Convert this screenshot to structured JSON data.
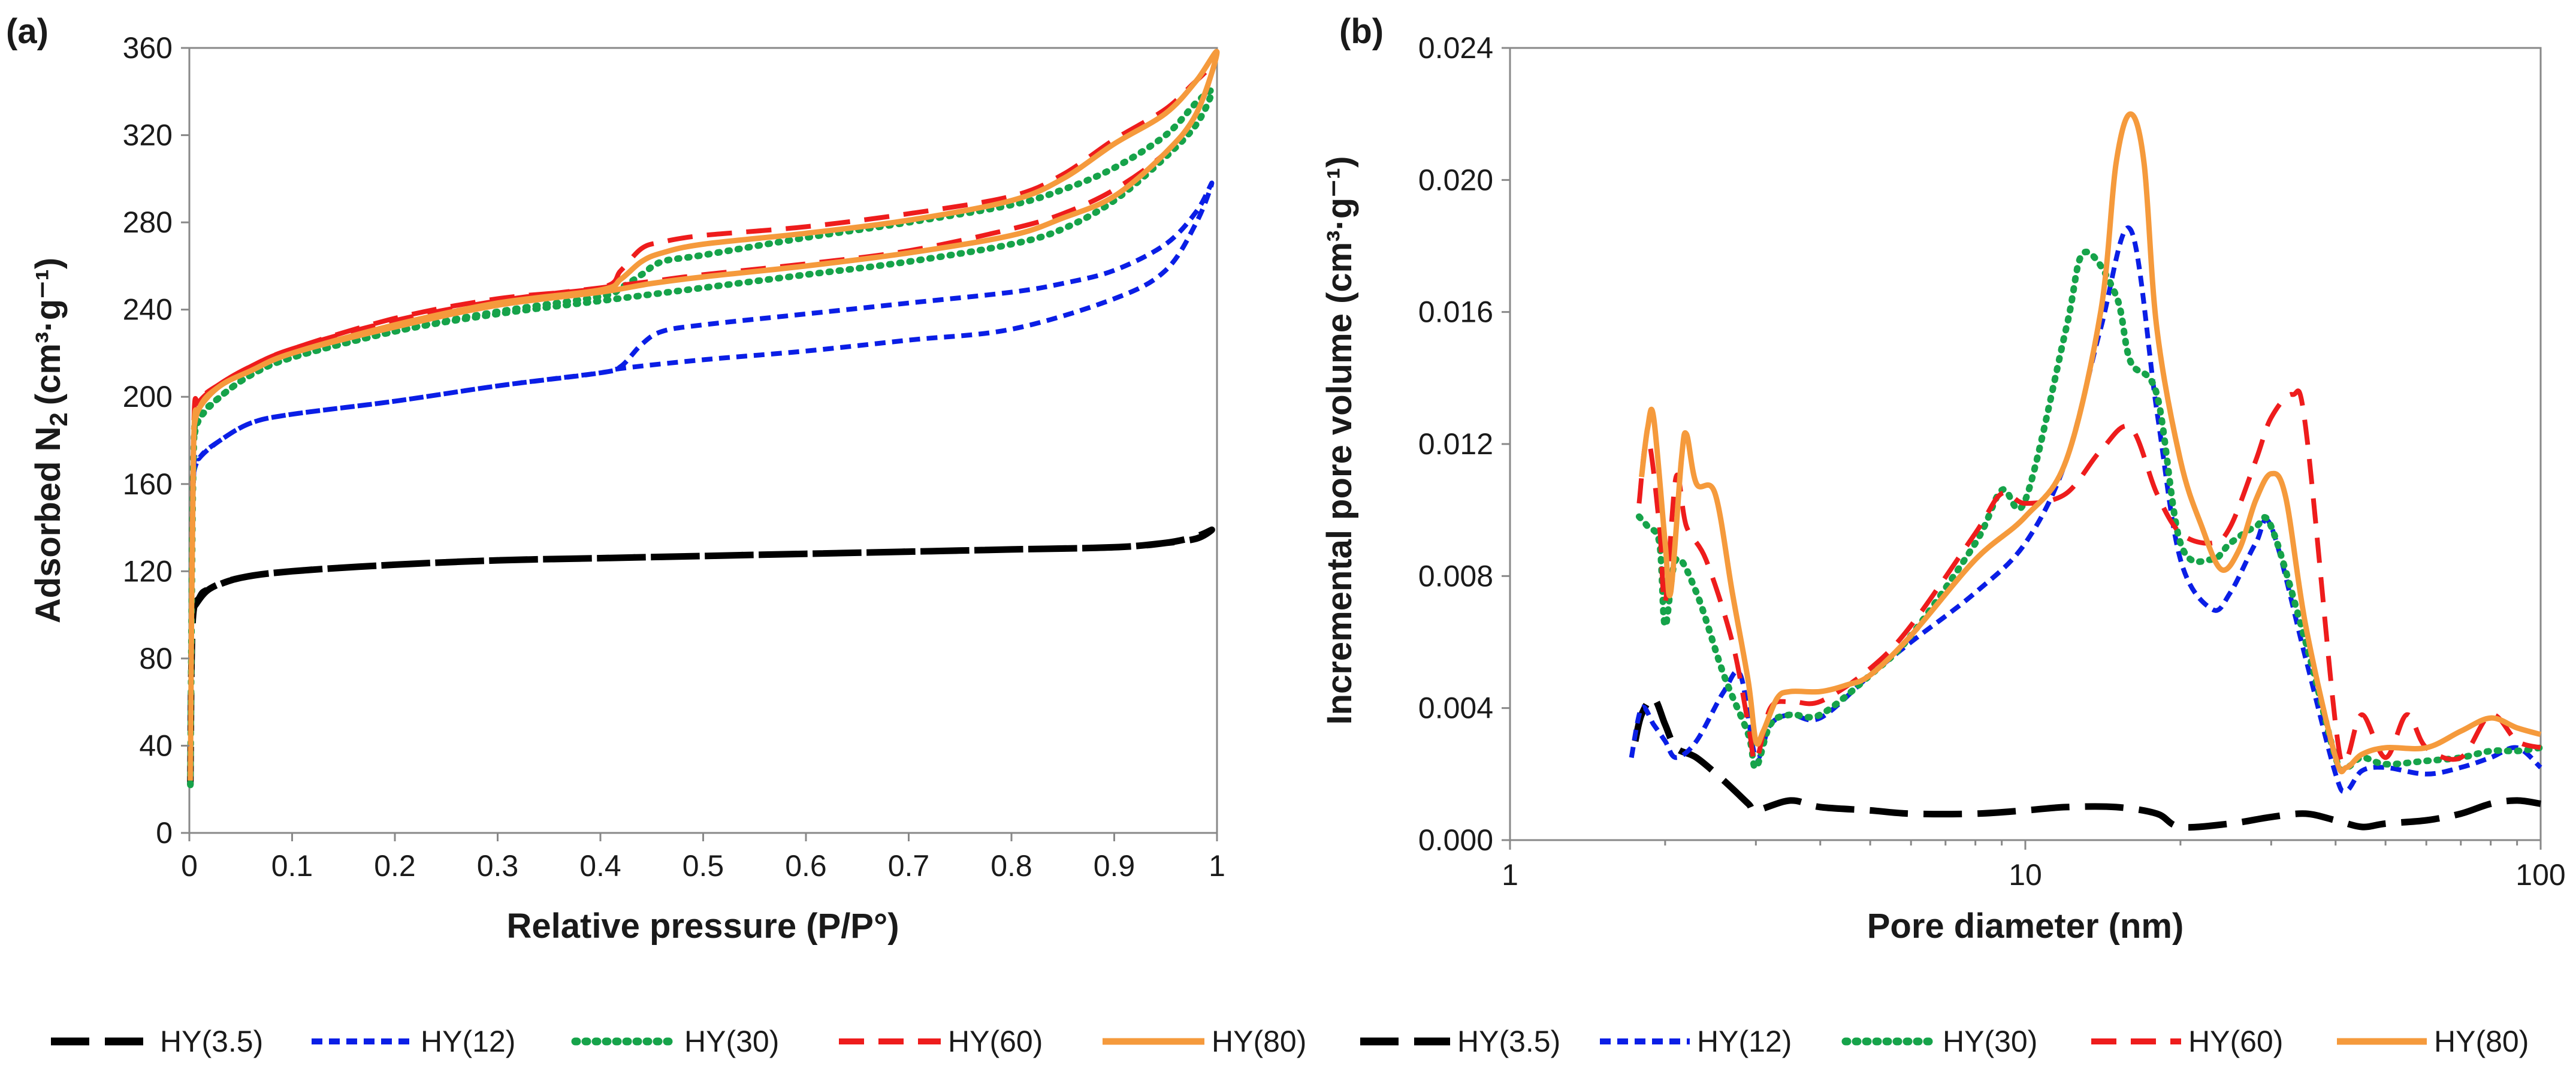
{
  "colors": {
    "HY(3.5)": "#000000",
    "HY(12)": "#0a1ee6",
    "HY(30)": "#16a34a",
    "HY(60)": "#ee1c1c",
    "HY(80)": "#f59a3c"
  },
  "chart_data": [
    {
      "id": "a",
      "panel_label": "(a)",
      "type": "line",
      "title": "",
      "xlabel": "Relative pressure (P/P°)",
      "ylabel_main": "Adsorbed N",
      "ylabel_sub": "2",
      "ylabel_unit": "(cm³·g⁻¹)",
      "xlim": [
        0,
        1
      ],
      "ylim": [
        0,
        360
      ],
      "xscale": "linear",
      "grid": false,
      "legend_position": "bottom",
      "xtick_labels": [
        "0",
        "0.1",
        "0.2",
        "0.3",
        "0.4",
        "0.5",
        "0.6",
        "0.7",
        "0.8",
        "0.9",
        "1"
      ],
      "ytick_labels": [
        "0",
        "40",
        "80",
        "120",
        "160",
        "200",
        "240",
        "280",
        "320",
        "360"
      ],
      "series": [
        {
          "name": "HY(3.5)",
          "style": "longdash",
          "x": [
            0.001,
            0.003,
            0.01,
            0.02,
            0.05,
            0.1,
            0.2,
            0.3,
            0.4,
            0.5,
            0.6,
            0.7,
            0.8,
            0.9,
            0.95,
            0.98,
            0.995,
            0.98,
            0.95,
            0.9,
            0.8,
            0.7,
            0.6,
            0.5,
            0.4,
            0.3,
            0.2,
            0.1,
            0.05,
            0.02,
            0.005
          ],
          "y": [
            22,
            95,
            108,
            112,
            117,
            120,
            123,
            125,
            126,
            127,
            128,
            129,
            130,
            131,
            133,
            135,
            139,
            136,
            133,
            131,
            130,
            129,
            128,
            127,
            126,
            125,
            123,
            120,
            117,
            112,
            104
          ]
        },
        {
          "name": "HY(12)",
          "style": "shortdash",
          "x": [
            0.001,
            0.004,
            0.01,
            0.03,
            0.06,
            0.1,
            0.2,
            0.3,
            0.4,
            0.42,
            0.5,
            0.6,
            0.7,
            0.8,
            0.9,
            0.95,
            0.98,
            0.995,
            0.98,
            0.95,
            0.9,
            0.85,
            0.8,
            0.7,
            0.6,
            0.5,
            0.46,
            0.44,
            0.42,
            0.4,
            0.3,
            0.2,
            0.1,
            0.06,
            0.03,
            0.01,
            0.004
          ],
          "y": [
            25,
            160,
            172,
            180,
            188,
            192,
            198,
            205,
            211,
            213,
            217,
            221,
            226,
            231,
            245,
            258,
            280,
            298,
            285,
            270,
            258,
            252,
            248,
            243,
            238,
            233,
            230,
            224,
            214,
            211,
            205,
            198,
            192,
            188,
            180,
            172,
            165
          ]
        },
        {
          "name": "HY(30)",
          "style": "dot",
          "x": [
            0.001,
            0.004,
            0.01,
            0.03,
            0.06,
            0.1,
            0.2,
            0.3,
            0.4,
            0.45,
            0.5,
            0.6,
            0.7,
            0.8,
            0.85,
            0.9,
            0.95,
            0.98,
            0.995,
            0.98,
            0.95,
            0.9,
            0.85,
            0.8,
            0.7,
            0.6,
            0.5,
            0.46,
            0.44,
            0.42,
            0.4,
            0.3,
            0.2,
            0.1,
            0.06,
            0.03,
            0.01,
            0.004
          ],
          "y": [
            22,
            172,
            190,
            200,
            210,
            218,
            230,
            238,
            244,
            247,
            250,
            256,
            262,
            270,
            277,
            290,
            310,
            325,
            340,
            335,
            320,
            305,
            295,
            288,
            280,
            273,
            265,
            262,
            256,
            250,
            246,
            239,
            230,
            218,
            210,
            200,
            190,
            180
          ]
        },
        {
          "name": "HY(60)",
          "style": "dash",
          "x": [
            0.001,
            0.004,
            0.01,
            0.03,
            0.06,
            0.1,
            0.2,
            0.3,
            0.4,
            0.45,
            0.5,
            0.6,
            0.7,
            0.8,
            0.85,
            0.9,
            0.95,
            0.98,
            0.995,
            0.98,
            0.95,
            0.9,
            0.85,
            0.8,
            0.7,
            0.6,
            0.5,
            0.46,
            0.44,
            0.42,
            0.4,
            0.3,
            0.2,
            0.1,
            0.06,
            0.03,
            0.01,
            0.004
          ],
          "y": [
            26,
            182,
            198,
            206,
            214,
            222,
            235,
            244,
            250,
            253,
            256,
            261,
            267,
            277,
            284,
            295,
            312,
            330,
            350,
            345,
            332,
            318,
            302,
            292,
            284,
            278,
            274,
            271,
            268,
            258,
            250,
            245,
            236,
            222,
            214,
            206,
            198,
            190
          ]
        },
        {
          "name": "HY(80)",
          "style": "solid",
          "x": [
            0.001,
            0.004,
            0.01,
            0.03,
            0.06,
            0.1,
            0.2,
            0.3,
            0.4,
            0.45,
            0.5,
            0.6,
            0.7,
            0.8,
            0.85,
            0.9,
            0.95,
            0.98,
            1.0,
            0.98,
            0.95,
            0.9,
            0.85,
            0.8,
            0.7,
            0.6,
            0.5,
            0.46,
            0.44,
            0.42,
            0.4,
            0.3,
            0.2,
            0.1,
            0.06,
            0.03,
            0.01,
            0.004
          ],
          "y": [
            24,
            175,
            195,
            205,
            212,
            220,
            232,
            242,
            248,
            252,
            255,
            260,
            266,
            274,
            282,
            292,
            312,
            330,
            358,
            345,
            330,
            316,
            300,
            290,
            281,
            275,
            270,
            266,
            262,
            254,
            249,
            243,
            233,
            220,
            212,
            205,
            195,
            185
          ]
        }
      ]
    },
    {
      "id": "b",
      "panel_label": "(b)",
      "type": "line",
      "title": "",
      "xlabel": "Pore diameter (nm)",
      "ylabel": "Incremental pore volume (cm³·g⁻¹)",
      "xlim": [
        1,
        100
      ],
      "ylim": [
        0,
        0.024
      ],
      "xscale": "log",
      "grid": false,
      "legend_position": "bottom",
      "xtick_labels": [
        "1",
        "10",
        "100"
      ],
      "xtick_values": [
        1,
        10,
        100
      ],
      "ytick_labels": [
        "0.000",
        "0.004",
        "0.008",
        "0.012",
        "0.016",
        "0.020",
        "0.024"
      ],
      "series": [
        {
          "name": "HY(3.5)",
          "style": "longdash",
          "x": [
            1.75,
            1.8,
            1.9,
            2.0,
            2.1,
            2.3,
            2.6,
            2.9,
            3.0,
            3.5,
            4,
            5,
            6,
            8,
            10,
            12,
            15,
            18,
            20,
            25,
            30,
            35,
            40,
            45,
            50,
            60,
            70,
            80,
            90,
            100
          ],
          "y": [
            0.003,
            0.0038,
            0.0043,
            0.0035,
            0.0028,
            0.0025,
            0.0018,
            0.0011,
            0.0009,
            0.0012,
            0.001,
            0.0009,
            0.0008,
            0.0008,
            0.0009,
            0.001,
            0.001,
            0.0008,
            0.0004,
            0.0005,
            0.0007,
            0.0008,
            0.0006,
            0.0004,
            0.0005,
            0.0006,
            0.0008,
            0.0011,
            0.0012,
            0.0011
          ]
        },
        {
          "name": "HY(12)",
          "style": "shortdash",
          "x": [
            1.72,
            1.8,
            1.9,
            2.0,
            2.1,
            2.3,
            2.6,
            2.8,
            3.0,
            3.2,
            3.5,
            4,
            5,
            6,
            8,
            10,
            12,
            14,
            16,
            18,
            20,
            23,
            25,
            28,
            30,
            35,
            40,
            42,
            45,
            50,
            60,
            70,
            80,
            90,
            100
          ],
          "y": [
            0.0025,
            0.004,
            0.0035,
            0.003,
            0.0025,
            0.003,
            0.0045,
            0.005,
            0.0025,
            0.0035,
            0.0038,
            0.0037,
            0.005,
            0.006,
            0.0075,
            0.009,
            0.0115,
            0.0155,
            0.0185,
            0.013,
            0.0085,
            0.007,
            0.0075,
            0.009,
            0.0095,
            0.0055,
            0.002,
            0.0015,
            0.0021,
            0.0022,
            0.002,
            0.0022,
            0.0025,
            0.0028,
            0.0022
          ]
        },
        {
          "name": "HY(30)",
          "style": "dot",
          "x": [
            1.78,
            1.85,
            1.95,
            2.0,
            2.1,
            2.3,
            2.6,
            2.9,
            3.0,
            3.2,
            3.5,
            4,
            5,
            6,
            8,
            9,
            10,
            12,
            13,
            15,
            16,
            18,
            20,
            23,
            25,
            28,
            30,
            35,
            40,
            42,
            45,
            50,
            60,
            70,
            80,
            90,
            100
          ],
          "y": [
            0.0098,
            0.0095,
            0.009,
            0.0065,
            0.0085,
            0.0075,
            0.005,
            0.0032,
            0.0022,
            0.0035,
            0.0038,
            0.0038,
            0.005,
            0.0062,
            0.009,
            0.0106,
            0.0103,
            0.0155,
            0.0178,
            0.0165,
            0.0145,
            0.0135,
            0.009,
            0.0085,
            0.009,
            0.0095,
            0.0095,
            0.006,
            0.0025,
            0.0022,
            0.0025,
            0.0023,
            0.0024,
            0.0025,
            0.0027,
            0.0027,
            0.0028
          ]
        },
        {
          "name": "HY(60)",
          "style": "dash",
          "x": [
            1.78,
            1.85,
            1.95,
            2.0,
            2.1,
            2.2,
            2.4,
            2.7,
            2.9,
            3.0,
            3.2,
            3.5,
            4,
            5,
            6,
            8,
            9,
            10,
            12,
            14,
            16,
            18,
            20,
            23,
            25,
            28,
            30,
            33,
            35,
            40,
            42,
            45,
            50,
            55,
            60,
            70,
            80,
            90,
            100
          ],
          "y": [
            0.0102,
            0.0122,
            0.0095,
            0.0072,
            0.011,
            0.0095,
            0.0085,
            0.006,
            0.0035,
            0.0024,
            0.004,
            0.0042,
            0.0042,
            0.0052,
            0.0065,
            0.0093,
            0.0105,
            0.0102,
            0.0105,
            0.0118,
            0.0125,
            0.0105,
            0.0093,
            0.009,
            0.0095,
            0.0115,
            0.0128,
            0.0135,
            0.0125,
            0.0035,
            0.0025,
            0.0038,
            0.0025,
            0.0038,
            0.0028,
            0.0025,
            0.0038,
            0.003,
            0.0028
          ]
        },
        {
          "name": "HY(80)",
          "style": "solid",
          "x": [
            1.8,
            1.85,
            1.9,
            2.0,
            2.05,
            2.15,
            2.2,
            2.3,
            2.5,
            2.7,
            2.9,
            3.0,
            3.1,
            3.3,
            3.5,
            4,
            4.5,
            5,
            6,
            8,
            10,
            12,
            14,
            15,
            16,
            17,
            18,
            20,
            22,
            24,
            26,
            28,
            30,
            32,
            35,
            40,
            42,
            45,
            50,
            60,
            70,
            80,
            90,
            100
          ],
          "y": [
            0.011,
            0.0125,
            0.0128,
            0.009,
            0.0075,
            0.0115,
            0.0123,
            0.0108,
            0.0105,
            0.0075,
            0.0048,
            0.003,
            0.0033,
            0.0043,
            0.0045,
            0.0045,
            0.0047,
            0.005,
            0.0062,
            0.0085,
            0.0098,
            0.0115,
            0.016,
            0.0205,
            0.022,
            0.0205,
            0.0155,
            0.0115,
            0.0095,
            0.0082,
            0.0088,
            0.0103,
            0.0111,
            0.0104,
            0.0065,
            0.0025,
            0.0022,
            0.0026,
            0.0028,
            0.0028,
            0.0033,
            0.0037,
            0.0034,
            0.0032
          ]
        }
      ]
    }
  ]
}
